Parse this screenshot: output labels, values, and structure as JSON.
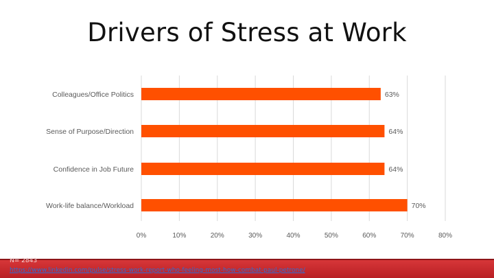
{
  "slide": {
    "title": "Drivers of Stress at Work"
  },
  "footer": {
    "sample_size": "N= 2843",
    "source_url": "https://www.linkedin.com/pulse/stress-work-report-who-feeling-most-how-combat-paul-petrone/"
  },
  "colors": {
    "bar": "#ff5000",
    "axis_text": "#595959",
    "gridline": "#d9d9d9",
    "footer_band": "#c62828"
  },
  "chart_data": {
    "type": "bar",
    "orientation": "horizontal",
    "categories": [
      "Colleagues/Office Politics",
      "Sense of Purpose/Direction",
      "Confidence in Job Future",
      "Work-life balance/Workload"
    ],
    "values": [
      63,
      64,
      64,
      70
    ],
    "data_labels": [
      "63%",
      "64%",
      "64%",
      "70%"
    ],
    "x_ticks": [
      "0%",
      "10%",
      "20%",
      "30%",
      "40%",
      "50%",
      "60%",
      "70%",
      "80%"
    ],
    "xlim": [
      0,
      80
    ],
    "grid": true
  }
}
